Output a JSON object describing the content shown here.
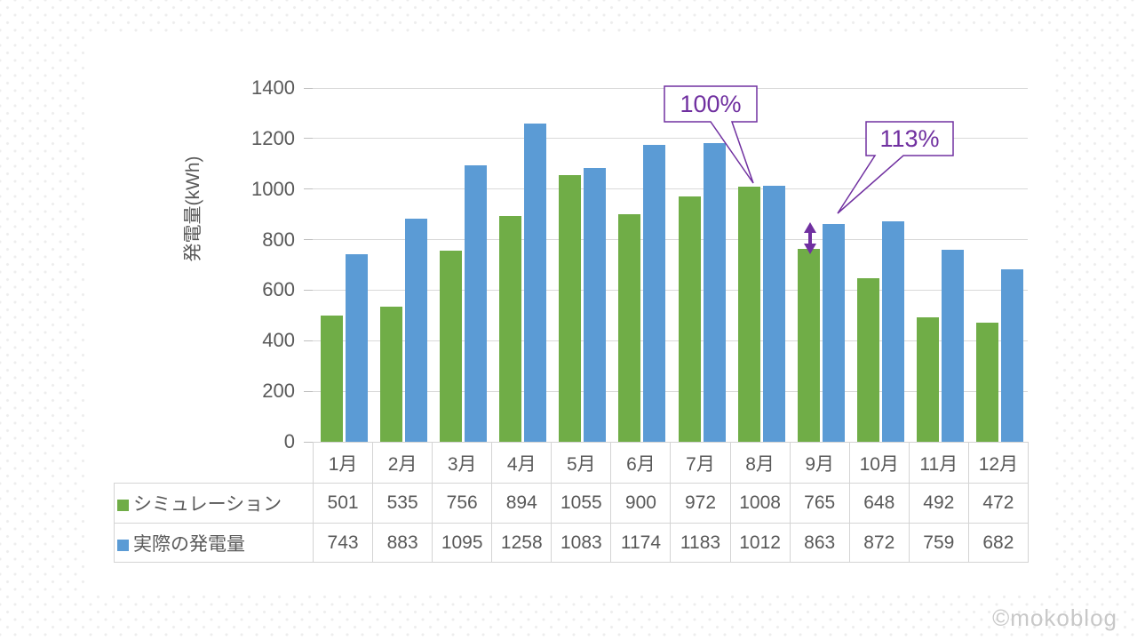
{
  "page": {
    "watermark": "©mokoblog"
  },
  "chart_data": {
    "type": "bar",
    "title": "",
    "y_axis_title": "発電量(kWh)",
    "ylabel": "発電量(kWh)",
    "xlabel": "",
    "categories": [
      "1月",
      "2月",
      "3月",
      "4月",
      "5月",
      "6月",
      "7月",
      "8月",
      "9月",
      "10月",
      "11月",
      "12月"
    ],
    "series": [
      {
        "name": "シミュレーション",
        "color": "#70AD47",
        "values": [
          501,
          535,
          756,
          894,
          1055,
          900,
          972,
          1008,
          765,
          648,
          492,
          472
        ]
      },
      {
        "name": "実際の発電量",
        "color": "#5B9BD5",
        "values": [
          743,
          883,
          1095,
          1258,
          1083,
          1174,
          1183,
          1012,
          863,
          872,
          759,
          682
        ]
      }
    ],
    "ylim": [
      0,
      1400
    ],
    "y_ticks": [
      0,
      200,
      400,
      600,
      800,
      1000,
      1200,
      1400
    ],
    "grid": true,
    "legend_position": "table-left",
    "annotations": [
      {
        "label": "100%",
        "target_month": "8月",
        "color": "#7030A0"
      },
      {
        "label": "113%",
        "target_month": "9月",
        "color": "#7030A0"
      }
    ],
    "accent_color": "#7030A0"
  }
}
